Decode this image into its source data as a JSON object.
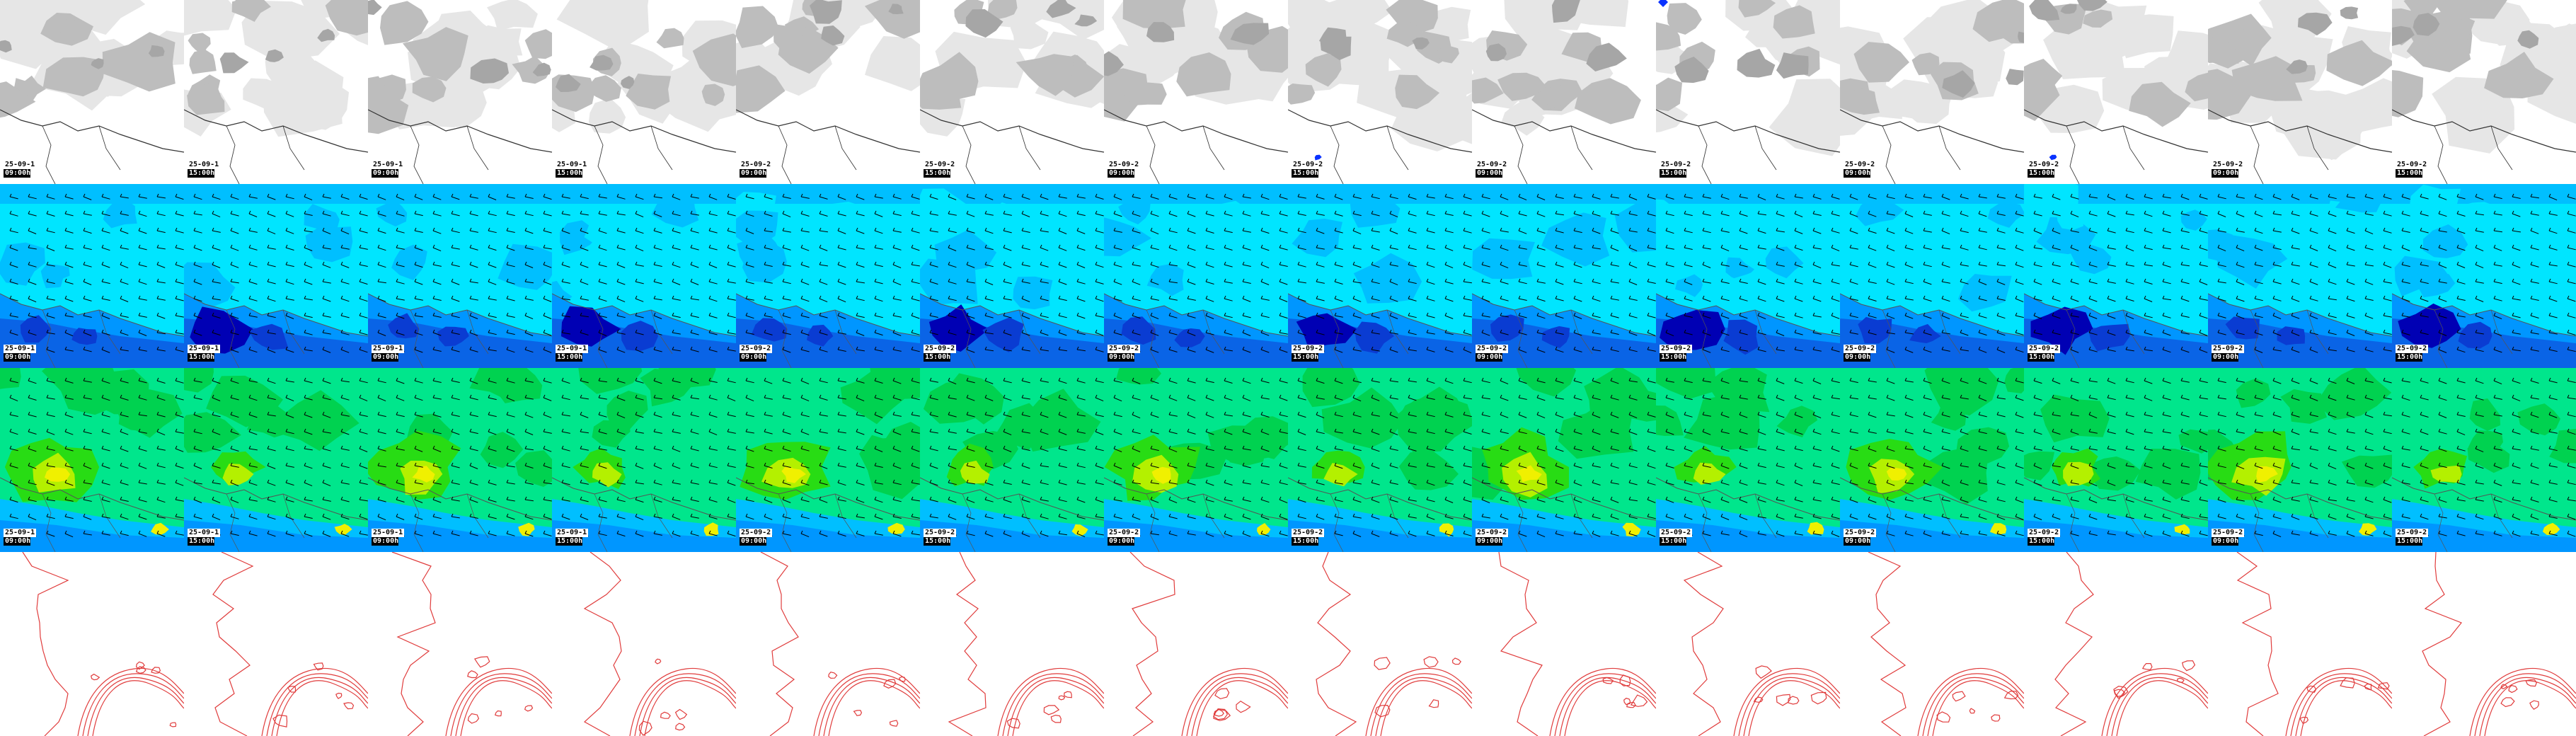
{
  "colors": {
    "cloud_light": "#e6e6e6",
    "cloud_mid": "#bdbdbd",
    "cloud_dark": "#a6a6a6",
    "coast": "#333333",
    "precip": "#0a32ff",
    "wind_levels": [
      "#00e5ff",
      "#00bfff",
      "#0096ff",
      "#0a64e6",
      "#0a3cd2",
      "#0000b4"
    ],
    "temp_levels": [
      "#00e68c",
      "#00d250",
      "#28dc14",
      "#b4f000",
      "#f0f000",
      "#ffc800"
    ],
    "contour": "#e03c3c",
    "barb": "#000000"
  },
  "rows": [
    {
      "name": "cloud-cover"
    },
    {
      "name": "wind-speed"
    },
    {
      "name": "temperature"
    },
    {
      "name": "pressure-contours"
    }
  ],
  "frames": [
    {
      "date": "25-09-1",
      "time": "09:00h",
      "precip": false,
      "marker": false
    },
    {
      "date": "25-09-1",
      "time": "15:00h",
      "precip": false,
      "marker": false
    },
    {
      "date": "25-09-1",
      "time": "09:00h",
      "precip": false,
      "marker": false
    },
    {
      "date": "25-09-1",
      "time": "15:00h",
      "precip": false,
      "marker": false
    },
    {
      "date": "25-09-2",
      "time": "09:00h",
      "precip": false,
      "marker": false
    },
    {
      "date": "25-09-2",
      "time": "15:00h",
      "precip": false,
      "marker": false
    },
    {
      "date": "25-09-2",
      "time": "09:00h",
      "precip": false,
      "marker": false
    },
    {
      "date": "25-09-2",
      "time": "15:00h",
      "precip": true,
      "marker": false
    },
    {
      "date": "25-09-2",
      "time": "09:00h",
      "precip": false,
      "marker": false
    },
    {
      "date": "25-09-2",
      "time": "15:00h",
      "precip": false,
      "marker": true
    },
    {
      "date": "25-09-2",
      "time": "09:00h",
      "precip": false,
      "marker": false
    },
    {
      "date": "25-09-2",
      "time": "15:00h",
      "precip": true,
      "marker": false
    },
    {
      "date": "25-09-2",
      "time": "09:00h",
      "precip": false,
      "marker": false
    },
    {
      "date": "25-09-2",
      "time": "15:00h",
      "precip": false,
      "marker": false
    }
  ]
}
